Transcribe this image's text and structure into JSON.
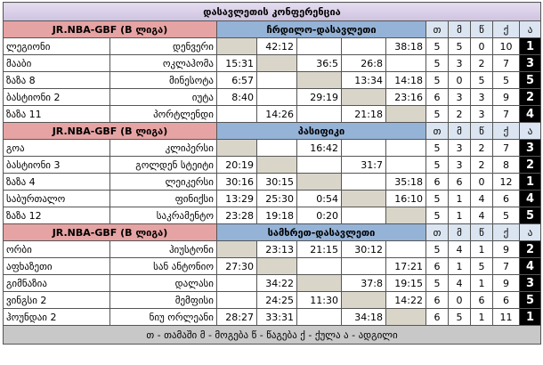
{
  "title": "დასავლეთის კონფერენცია",
  "groups": [
    {
      "league": "JR.NBA-GBF (B ლიგა)",
      "division": "ჩრდილო-დასავლეთი",
      "headers": [
        "თ",
        "მ",
        "წ",
        "ქ",
        "ა"
      ],
      "rows": [
        {
          "team": "ლეგიონი",
          "franchise": "დენვერი",
          "scores": [
            null,
            "42:12",
            null,
            null,
            "38:18"
          ],
          "stats": [
            5,
            5,
            0,
            10,
            1
          ]
        },
        {
          "team": "მააბი",
          "franchise": "ოკლაჰომა",
          "scores": [
            "15:31",
            null,
            "36:5",
            "26:8",
            null
          ],
          "stats": [
            5,
            3,
            2,
            7,
            3
          ]
        },
        {
          "team": "ზაზა 8",
          "franchise": "მინესოტა",
          "scores": [
            "6:57",
            null,
            null,
            "13:34",
            "14:18"
          ],
          "stats": [
            5,
            0,
            5,
            5,
            5
          ]
        },
        {
          "team": "ბასტიონი 2",
          "franchise": "იუტა",
          "scores": [
            "8:40",
            null,
            "29:19",
            null,
            "23:16"
          ],
          "stats": [
            6,
            3,
            3,
            9,
            2
          ]
        },
        {
          "team": "ზაზა 11",
          "franchise": "პორტლენდი",
          "scores": [
            null,
            "14:26",
            null,
            "21:18",
            null
          ],
          "stats": [
            5,
            2,
            3,
            7,
            4
          ]
        }
      ]
    },
    {
      "league": "JR.NBA-GBF (B ლიგა)",
      "division": "პასიფიკი",
      "headers": [
        "თ",
        "მ",
        "წ",
        "ქ",
        "ა"
      ],
      "rows": [
        {
          "team": "გოა",
          "franchise": "კლიპერსი",
          "scores": [
            null,
            null,
            "16:42",
            null,
            null
          ],
          "stats": [
            5,
            3,
            2,
            7,
            3
          ]
        },
        {
          "team": "ბასტიონი 3",
          "franchise": "გოლდენ სტეიტი",
          "scores": [
            "20:19",
            null,
            null,
            "31:7",
            null
          ],
          "stats": [
            5,
            3,
            2,
            8,
            2
          ]
        },
        {
          "team": "ზაზა 4",
          "franchise": "ლეიკერსი",
          "scores": [
            "30:16",
            "30:15",
            null,
            null,
            "35:18"
          ],
          "stats": [
            6,
            6,
            0,
            12,
            1
          ]
        },
        {
          "team": "საბურთალო",
          "franchise": "ფინიქსი",
          "scores": [
            "13:29",
            "25:30",
            "0:54",
            null,
            "16:10"
          ],
          "stats": [
            5,
            1,
            4,
            6,
            4
          ]
        },
        {
          "team": "ზაზა 12",
          "franchise": "საკრამენტო",
          "scores": [
            "23:28",
            "19:18",
            "0:20",
            null,
            null
          ],
          "stats": [
            5,
            1,
            4,
            5,
            5
          ]
        }
      ]
    },
    {
      "league": "JR.NBA-GBF (B ლიგა)",
      "division": "სამხრეთ-დასავლეთი",
      "headers": [
        "თ",
        "მ",
        "წ",
        "ქ",
        "ა"
      ],
      "rows": [
        {
          "team": "ორბი",
          "franchise": "ჰიუსტონი",
          "scores": [
            null,
            "23:13",
            "21:15",
            "30:12",
            null
          ],
          "stats": [
            5,
            4,
            1,
            9,
            2
          ]
        },
        {
          "team": "აფხაზეთი",
          "franchise": "სან ანტონიო",
          "scores": [
            "27:30",
            null,
            null,
            null,
            "17:21"
          ],
          "stats": [
            6,
            1,
            5,
            7,
            4
          ]
        },
        {
          "team": "გიმნაზია",
          "franchise": "დალასი",
          "scores": [
            null,
            "34:22",
            null,
            "37:8",
            "19:15"
          ],
          "stats": [
            5,
            4,
            1,
            9,
            3
          ]
        },
        {
          "team": "ვინგსი 2",
          "franchise": "მემფისი",
          "scores": [
            null,
            "24:25",
            "11:30",
            null,
            "14:22"
          ],
          "stats": [
            6,
            0,
            6,
            6,
            5
          ]
        },
        {
          "team": "ჰოუნდაი 2",
          "franchise": "ნიუ ორლეანი",
          "scores": [
            "28:27",
            "33:31",
            null,
            "34:18",
            null
          ],
          "stats": [
            6,
            5,
            1,
            11,
            1
          ]
        }
      ]
    }
  ],
  "footer": "თ - თამაში მ - მოგება წ - წაგება ქ - ქულა ა - ადგილი"
}
